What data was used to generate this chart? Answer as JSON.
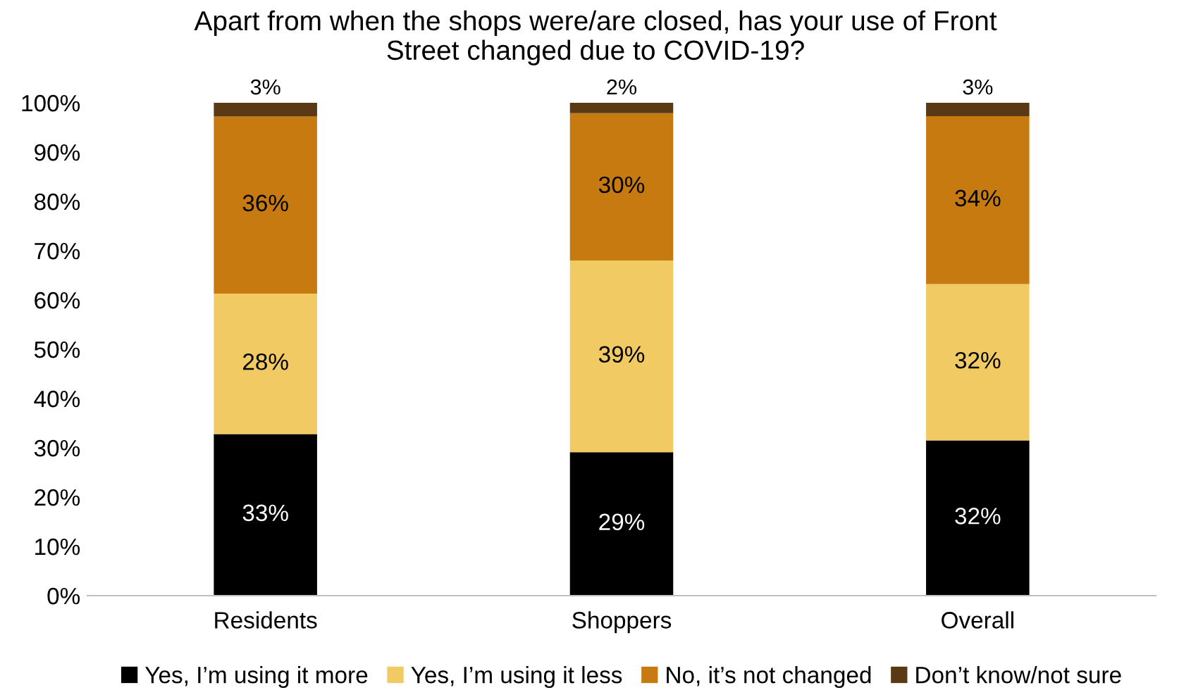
{
  "chart_data": {
    "type": "bar",
    "stacked": true,
    "title": "Apart from when the shops were/are closed, has your use of Front\nStreet changed due to COVID-19?",
    "categories": [
      "Residents",
      "Shoppers",
      "Overall"
    ],
    "series": [
      {
        "name": "Yes, I’m using it more",
        "color": "#000000",
        "values": [
          32.8,
          29.1,
          31.5
        ],
        "value_labels": [
          "33%",
          "29%",
          "32%"
        ]
      },
      {
        "name": "Yes, I’m using it less",
        "color": "#f2ca63",
        "values": [
          28.5,
          38.9,
          31.7
        ],
        "value_labels": [
          "28%",
          "39%",
          "32%"
        ]
      },
      {
        "name": "No, it’s not changed",
        "color": "#c77a10",
        "values": [
          35.9,
          29.9,
          34.1
        ],
        "value_labels": [
          "36%",
          "30%",
          "34%"
        ]
      },
      {
        "name": "Don’t know/not sure",
        "color": "#5a3a14",
        "values": [
          2.8,
          2.1,
          2.7
        ],
        "value_labels": [
          "3%",
          "2%",
          "3%"
        ]
      }
    ],
    "ylim": [
      0,
      100
    ],
    "yticks": [
      {
        "value": 0,
        "label": "0%"
      },
      {
        "value": 10,
        "label": "10%"
      },
      {
        "value": 20,
        "label": "20%"
      },
      {
        "value": 30,
        "label": "30%"
      },
      {
        "value": 40,
        "label": "40%"
      },
      {
        "value": 50,
        "label": "50%"
      },
      {
        "value": 60,
        "label": "60%"
      },
      {
        "value": 70,
        "label": "70%"
      },
      {
        "value": 80,
        "label": "80%"
      },
      {
        "value": 90,
        "label": "90%"
      },
      {
        "value": 100,
        "label": "100%"
      }
    ],
    "grid": false,
    "legend": "bottom"
  }
}
